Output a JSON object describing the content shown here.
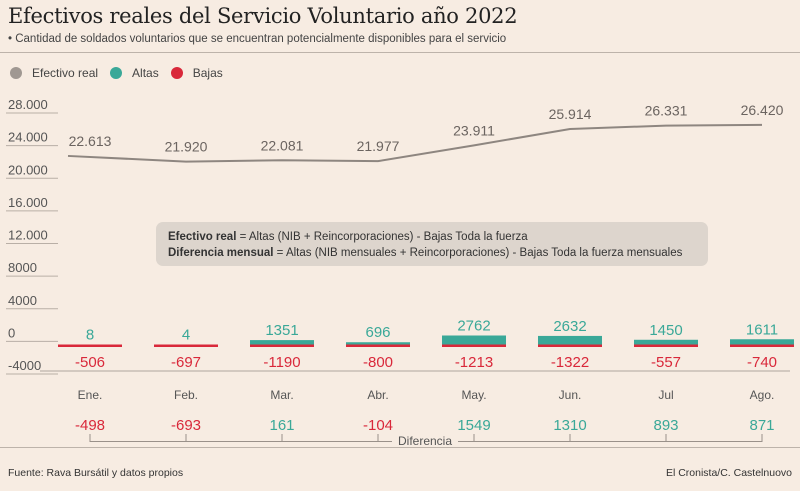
{
  "header": {
    "title": "Efectivos reales del Servicio Voluntario año 2022",
    "subtitle": "• Cantidad de soldados voluntarios que se encuentran potencialmente disponibles para el servicio"
  },
  "legend": [
    {
      "label": "Efectivo real",
      "color": "#a09892"
    },
    {
      "label": "Altas",
      "color": "#3aa898"
    },
    {
      "label": "Bajas",
      "color": "#d9283a"
    }
  ],
  "note": {
    "line1_bold": "Efectivo real",
    "line1_rest": " = Altas (NIB + Reincorporaciones) - Bajas Toda la fuerza",
    "line2_bold": "Diferencia mensual",
    "line2_rest": " = Altas (NIB mensuales + Reincorporaciones) - Bajas Toda la fuerza mensuales"
  },
  "footer": {
    "source": "Fuente: Rava Bursátil y datos propios",
    "credit": "El Cronista/C. Castelnuovo"
  },
  "chart_data": {
    "type": "line",
    "title": "Efectivos reales del Servicio Voluntario año 2022",
    "categories": [
      "Ene.",
      "Feb.",
      "Mar.",
      "Abr.",
      "May.",
      "Jun.",
      "Jul",
      "Ago."
    ],
    "yticks": [
      "28.000",
      "24.000",
      "20.000",
      "16.000",
      "12.000",
      "8000",
      "4000",
      "0",
      "-4000"
    ],
    "ytick_values": [
      28000,
      24000,
      20000,
      16000,
      12000,
      8000,
      4000,
      0,
      -4000
    ],
    "ylim": [
      -4000,
      28000
    ],
    "grid": true,
    "legend_position": "top-left",
    "series": [
      {
        "name": "Efectivo real",
        "values": [
          22613,
          21920,
          22081,
          21977,
          23911,
          25914,
          26331,
          26420
        ],
        "labels": [
          "22.613",
          "21.920",
          "22.081",
          "21.977",
          "23.911",
          "25.914",
          "26.331",
          "26.420"
        ]
      },
      {
        "name": "Altas",
        "values": [
          8,
          4,
          1351,
          696,
          2762,
          2632,
          1450,
          1611
        ]
      },
      {
        "name": "Bajas",
        "values": [
          -506,
          -697,
          -1190,
          -800,
          -1213,
          -1322,
          -557,
          -740
        ]
      },
      {
        "name": "Diferencia",
        "values": [
          -498,
          -693,
          161,
          -104,
          1549,
          1310,
          893,
          871
        ]
      }
    ],
    "difference_label": "Diferencia"
  }
}
